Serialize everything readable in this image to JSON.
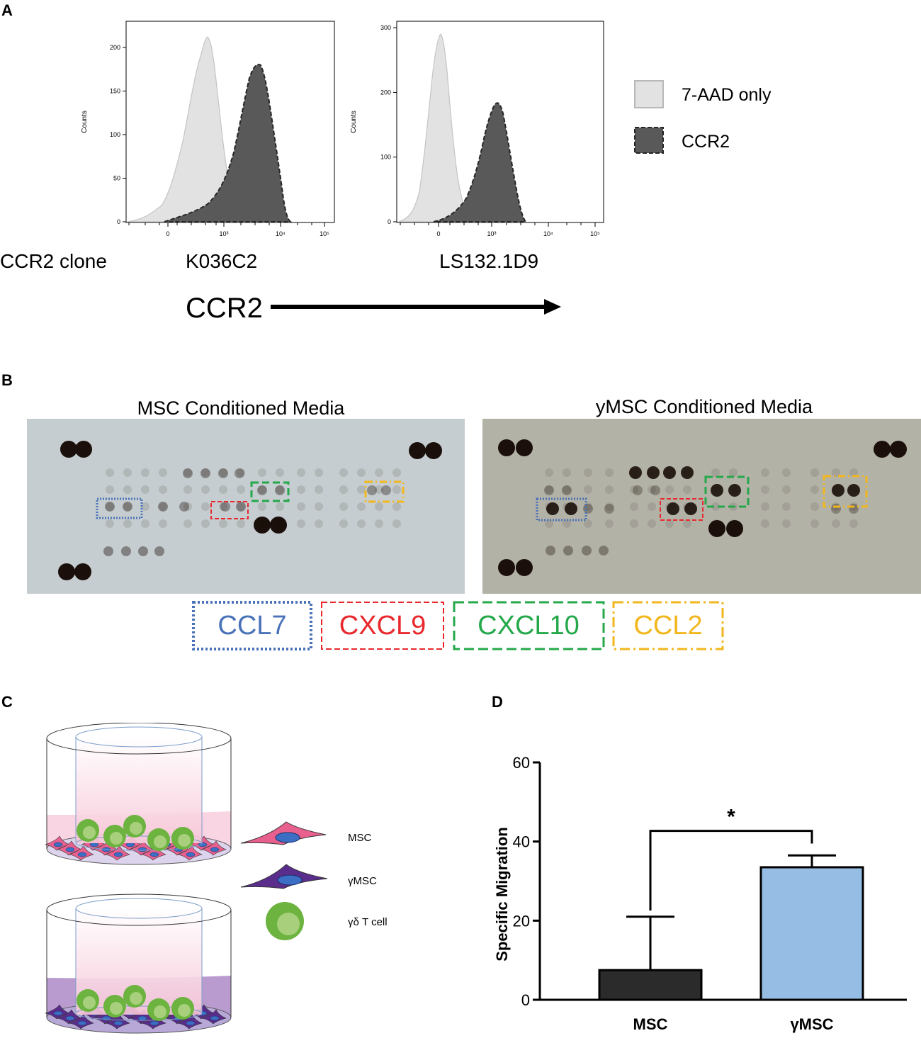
{
  "panels": {
    "a": "A",
    "b": "B",
    "c": "C",
    "d": "D"
  },
  "panel_a": {
    "clone_label": "CCR2 clone",
    "axis_label": "CCR2",
    "y_axis_label": "Counts",
    "x_tick_labels": [
      "0",
      "10³",
      "10⁴",
      "10⁵"
    ],
    "legend": [
      {
        "name": "7-AAD only",
        "color": "#e2e2e2"
      },
      {
        "name": "CCR2",
        "color": "#595959"
      }
    ],
    "plots": [
      {
        "clone": "K036C2",
        "y_ticks": [
          "0",
          "50",
          "100",
          "150",
          "200"
        ],
        "y_max": 230
      },
      {
        "clone": "LS132.1D9",
        "y_ticks": [
          "0",
          "100",
          "200",
          "300"
        ],
        "y_max": 310
      }
    ]
  },
  "panel_b": {
    "blots": [
      {
        "title": "MSC Conditioned Media",
        "bg": "#c6cdd0"
      },
      {
        "title": "yMSC Conditioned Media",
        "bg": "#b3b2a7"
      }
    ],
    "key": [
      {
        "name": "CCL7",
        "color": "#4a72b8"
      },
      {
        "name": "CXCL9",
        "color": "#e8282d"
      },
      {
        "name": "CXCL10",
        "color": "#24a84a"
      },
      {
        "name": "CCL2",
        "color": "#f2b71d"
      }
    ]
  },
  "panel_c": {
    "legend": [
      {
        "name": "MSC",
        "color": "#e8608e"
      },
      {
        "name": "γMSC",
        "color": "#5a2d8c"
      },
      {
        "name": "γδ  T cell",
        "color": "#6cb33f"
      }
    ]
  },
  "chart_data": {
    "type": "bar",
    "categories": [
      "MSC",
      "γMSC"
    ],
    "values": [
      7.5,
      33.5
    ],
    "errors": [
      13.5,
      3.0
    ],
    "colors": [
      "#2b2b2b",
      "#96bde3"
    ],
    "xlabel": "",
    "ylabel": "Specific Migration",
    "ylim": [
      0,
      60
    ],
    "yticks": [
      "0",
      "20",
      "40",
      "60"
    ],
    "significance": "*"
  }
}
